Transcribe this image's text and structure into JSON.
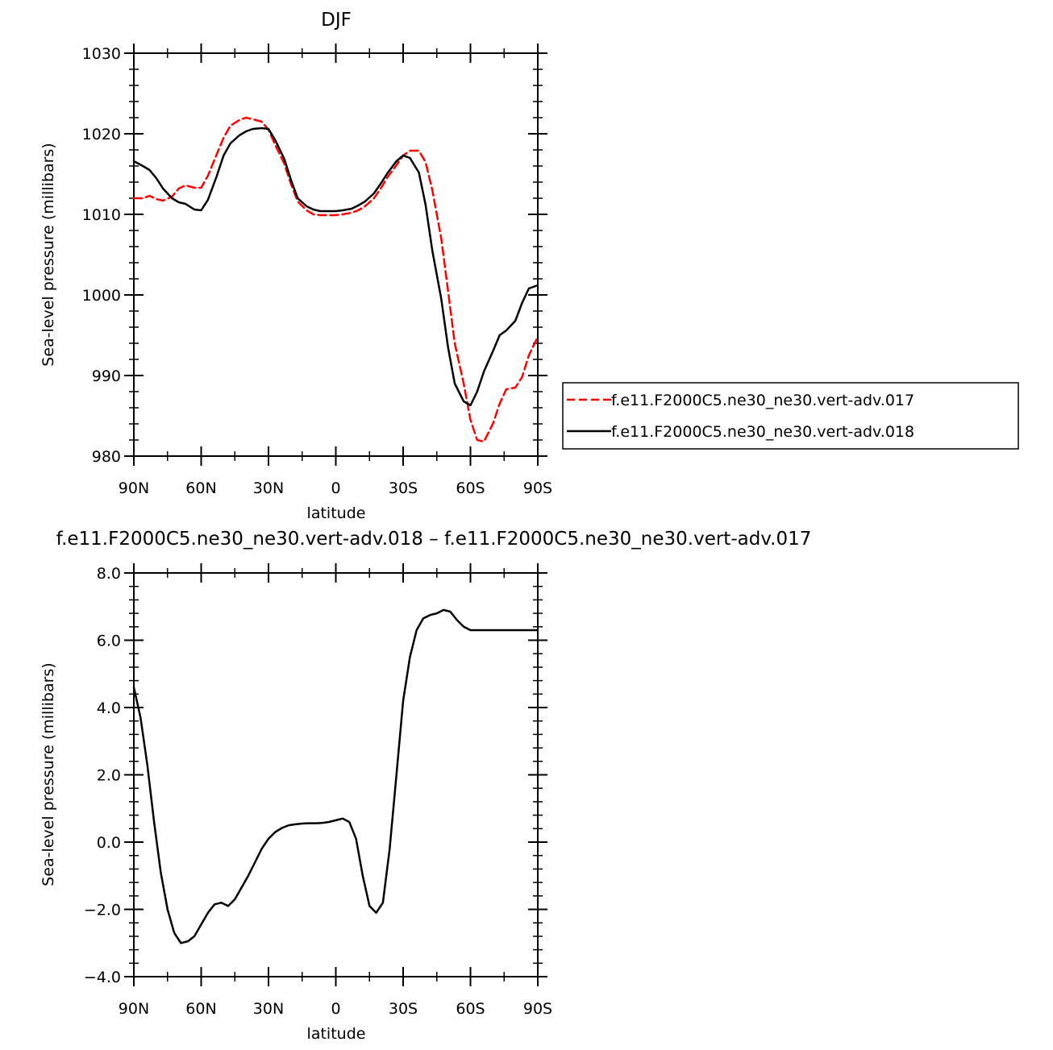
{
  "chart_data": [
    {
      "type": "line",
      "title": "DJF",
      "xlabel": "latitude",
      "ylabel": "Sea-level pressure (millibars)",
      "xlim": [
        90,
        -90
      ],
      "ylim": [
        980,
        1030
      ],
      "x_ticks": [
        90,
        60,
        30,
        0,
        -30,
        -60,
        -90
      ],
      "x_tick_labels": [
        "90N",
        "60N",
        "30N",
        "0",
        "30S",
        "60S",
        "90S"
      ],
      "y_ticks": [
        980,
        990,
        1000,
        1010,
        1020,
        1030
      ],
      "y_tick_labels": [
        "980",
        "990",
        "1000",
        "1010",
        "1020",
        "1030"
      ],
      "legend_position": "right",
      "series": [
        {
          "name": "f.e11.F2000C5.ne30_ne30.vert-adv.017",
          "color": "#ff0000",
          "style": "dashed",
          "x": [
            90,
            86,
            83,
            80,
            77,
            73,
            70,
            67,
            63,
            60,
            57,
            53,
            50,
            47,
            43,
            40,
            37,
            33,
            30,
            27,
            23,
            20,
            17,
            13,
            10,
            7,
            3,
            0,
            -3,
            -7,
            -10,
            -13,
            -17,
            -20,
            -23,
            -27,
            -30,
            -33,
            -37,
            -40,
            -43,
            -47,
            -50,
            -53,
            -57,
            -60,
            -63,
            -66,
            -70,
            -73,
            -76,
            -80,
            -83,
            -86,
            -90
          ],
          "y": [
            1012.0,
            1012.0,
            1012.3,
            1011.9,
            1011.7,
            1012.2,
            1013.2,
            1013.6,
            1013.3,
            1013.3,
            1014.8,
            1017.5,
            1019.5,
            1021.0,
            1021.7,
            1022.0,
            1021.8,
            1021.5,
            1020.5,
            1018.6,
            1016.3,
            1013.8,
            1011.6,
            1010.5,
            1010.0,
            1009.9,
            1009.9,
            1009.9,
            1010.0,
            1010.2,
            1010.5,
            1011.0,
            1012.0,
            1013.2,
            1014.6,
            1016.1,
            1017.3,
            1017.9,
            1017.9,
            1016.5,
            1013.0,
            1007.0,
            1000.5,
            994.0,
            989.0,
            984.5,
            982.0,
            981.8,
            984.0,
            986.5,
            988.3,
            988.5,
            989.8,
            992.5,
            994.8
          ]
        },
        {
          "name": "f.e11.F2000C5.ne30_ne30.vert-adv.018",
          "color": "#000000",
          "style": "solid",
          "x": [
            90,
            86,
            83,
            80,
            77,
            73,
            70,
            67,
            63,
            60,
            57,
            53,
            50,
            47,
            43,
            40,
            37,
            33,
            30,
            27,
            23,
            20,
            17,
            13,
            10,
            7,
            3,
            0,
            -3,
            -7,
            -10,
            -13,
            -17,
            -20,
            -23,
            -27,
            -30,
            -33,
            -37,
            -40,
            -43,
            -47,
            -50,
            -53,
            -57,
            -60,
            -63,
            -66,
            -70,
            -73,
            -76,
            -80,
            -83,
            -86,
            -90
          ],
          "y": [
            1016.6,
            1016.0,
            1015.5,
            1014.5,
            1013.2,
            1012.0,
            1011.5,
            1011.3,
            1010.6,
            1010.5,
            1011.8,
            1014.8,
            1017.3,
            1018.8,
            1019.8,
            1020.3,
            1020.6,
            1020.7,
            1020.6,
            1019.2,
            1016.9,
            1014.3,
            1012.0,
            1011.0,
            1010.6,
            1010.4,
            1010.4,
            1010.4,
            1010.5,
            1010.7,
            1011.1,
            1011.6,
            1012.6,
            1013.8,
            1015.1,
            1016.6,
            1017.3,
            1017.0,
            1015.2,
            1011.2,
            1005.5,
            999.5,
            993.5,
            989.0,
            986.8,
            986.3,
            988.0,
            990.5,
            993.0,
            995.0,
            995.6,
            996.8,
            999.0,
            1000.8,
            1001.2
          ]
        }
      ]
    },
    {
      "type": "line",
      "title": "f.e11.F2000C5.ne30_ne30.vert-adv.018 – f.e11.F2000C5.ne30_ne30.vert-adv.017",
      "xlabel": "latitude",
      "ylabel": "Sea-level pressure (millibars)",
      "xlim": [
        90,
        -90
      ],
      "ylim": [
        -4,
        8
      ],
      "x_ticks": [
        90,
        60,
        30,
        0,
        -30,
        -60,
        -90
      ],
      "x_tick_labels": [
        "90N",
        "60N",
        "30N",
        "0",
        "30S",
        "60S",
        "90S"
      ],
      "y_ticks": [
        -4,
        -2,
        0,
        2,
        4,
        6,
        8
      ],
      "y_tick_labels": [
        "−4.0",
        "−2.0",
        "0.0",
        "2.0",
        "4.0",
        "6.0",
        "8.0"
      ],
      "series": [
        {
          "color": "#000000",
          "style": "solid",
          "x": [
            90,
            87,
            84,
            81,
            78,
            75,
            72,
            69,
            66,
            63,
            60,
            57,
            54,
            51,
            48,
            45,
            42,
            39,
            36,
            33,
            30,
            27,
            24,
            21,
            18,
            15,
            12,
            9,
            6,
            3,
            0,
            -3,
            -6,
            -9,
            -12,
            -15,
            -18,
            -21,
            -24,
            -27,
            -30,
            -33,
            -36,
            -39,
            -42,
            -45,
            -48,
            -51,
            -54,
            -57,
            -60,
            -63,
            -66,
            -69,
            -72,
            -75,
            -78,
            -81,
            -84,
            -87,
            -90
          ],
          "y": [
            4.6,
            3.7,
            2.3,
            0.6,
            -0.9,
            -2.0,
            -2.7,
            -3.0,
            -2.95,
            -2.8,
            -2.45,
            -2.1,
            -1.85,
            -1.8,
            -1.9,
            -1.7,
            -1.35,
            -1.0,
            -0.6,
            -0.2,
            0.1,
            0.3,
            0.42,
            0.5,
            0.53,
            0.55,
            0.56,
            0.56,
            0.57,
            0.6,
            0.65,
            0.7,
            0.6,
            0.1,
            -1.0,
            -1.9,
            -2.1,
            -1.8,
            -0.2,
            2.0,
            4.2,
            5.5,
            6.3,
            6.65,
            6.75,
            6.8,
            6.9,
            6.85,
            6.6,
            6.4,
            6.3,
            6.3,
            6.3,
            6.3,
            6.3,
            6.3,
            6.3,
            6.3,
            6.3,
            6.3,
            6.3
          ]
        }
      ]
    }
  ]
}
